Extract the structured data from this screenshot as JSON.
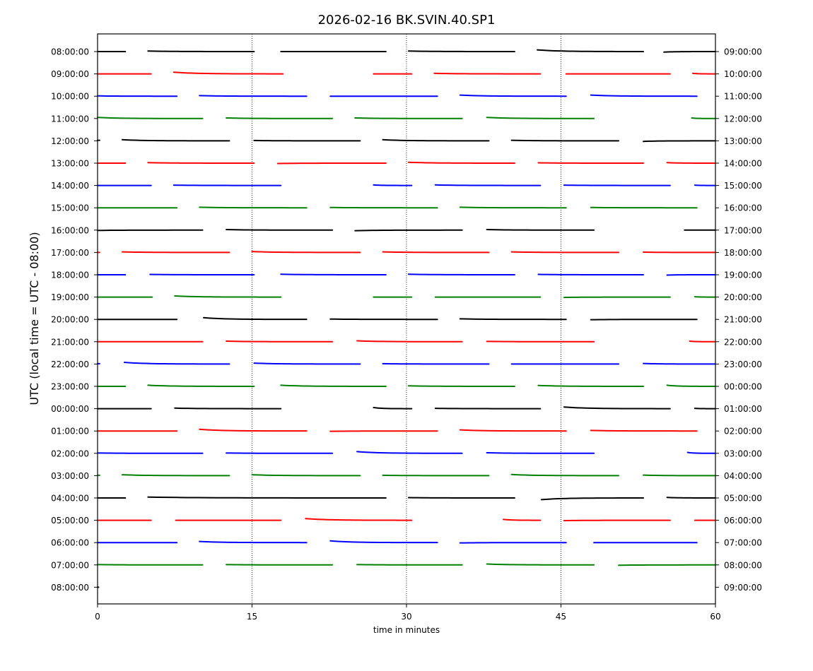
{
  "chart_data": {
    "type": "line",
    "chart_kind": "dayplot",
    "title": "2026-02-16 BK.SVIN.40.SP1",
    "xlabel": "time in minutes",
    "ylabel": "UTC (local time = UTC - 08:00)",
    "xlim": [
      0,
      60
    ],
    "xticks": [
      0,
      15,
      30,
      45,
      60
    ],
    "grid": "vertical dotted at 15, 30, 45",
    "line_colors": [
      "#000000",
      "#ff0000",
      "#0000ff",
      "#008000"
    ],
    "rows": [
      {
        "left": "08:00:00",
        "right": "09:00:00",
        "segments": [
          [
            0,
            2.7,
            0,
            0
          ],
          [
            4.9,
            15.2,
            0.5,
            0
          ],
          [
            17.8,
            28,
            0,
            0
          ],
          [
            30.2,
            40.5,
            0.5,
            0
          ],
          [
            42.7,
            53,
            1.5,
            0
          ],
          [
            55,
            60,
            -0.5,
            0
          ]
        ]
      },
      {
        "left": "09:00:00",
        "right": "10:00:00",
        "segments": [
          [
            0,
            5.2,
            0,
            0
          ],
          [
            7.4,
            18,
            1.5,
            0
          ],
          [
            26.8,
            30.5,
            0,
            0
          ],
          [
            32.7,
            43,
            0.5,
            0
          ],
          [
            45.5,
            55.6,
            0,
            0
          ],
          [
            57.8,
            60,
            0.5,
            0
          ]
        ]
      },
      {
        "left": "10:00:00",
        "right": "11:00:00",
        "segments": [
          [
            0,
            7.7,
            0.3,
            0
          ],
          [
            9.9,
            20.3,
            0.5,
            0
          ],
          [
            22.6,
            33,
            0,
            0
          ],
          [
            35.2,
            45.5,
            1,
            0
          ],
          [
            47.9,
            58.2,
            1,
            0
          ]
        ]
      },
      {
        "left": "11:00:00",
        "right": "12:00:00",
        "segments": [
          [
            0,
            10.2,
            1,
            0
          ],
          [
            12.5,
            22.8,
            0.5,
            0
          ],
          [
            25,
            35.4,
            0.5,
            0
          ],
          [
            37.8,
            48.2,
            1,
            0
          ],
          [
            57.7,
            60,
            0.5,
            0
          ]
        ]
      },
      {
        "left": "12:00:00",
        "right": "13:00:00",
        "segments": [
          [
            0,
            0.2,
            0.5,
            0.5
          ],
          [
            2.4,
            12.8,
            1,
            0
          ],
          [
            15.2,
            25.5,
            0.3,
            0
          ],
          [
            27.7,
            38,
            1,
            0
          ],
          [
            40.2,
            50.6,
            0.5,
            0
          ],
          [
            53,
            60,
            -0.5,
            0
          ]
        ]
      },
      {
        "left": "13:00:00",
        "right": "14:00:00",
        "segments": [
          [
            0,
            2.7,
            0,
            0
          ],
          [
            4.9,
            15.2,
            0.5,
            0
          ],
          [
            17.5,
            28,
            -0.3,
            0
          ],
          [
            30.2,
            40.5,
            0.8,
            0
          ],
          [
            42.8,
            53,
            0.3,
            0
          ],
          [
            55.3,
            60,
            0.5,
            0
          ]
        ]
      },
      {
        "left": "14:00:00",
        "right": "15:00:00",
        "segments": [
          [
            0,
            5.2,
            0,
            0
          ],
          [
            7.4,
            17.8,
            0.3,
            0
          ],
          [
            26.8,
            30.5,
            0.5,
            0
          ],
          [
            32.8,
            43,
            0.5,
            0
          ],
          [
            45.3,
            55.6,
            0.3,
            0
          ],
          [
            58,
            60,
            0.3,
            0
          ]
        ]
      },
      {
        "left": "15:00:00",
        "right": "16:00:00",
        "segments": [
          [
            0,
            7.7,
            0,
            0
          ],
          [
            9.9,
            20.3,
            0.5,
            0
          ],
          [
            22.6,
            33,
            0.3,
            0
          ],
          [
            35.2,
            45.5,
            0.5,
            0
          ],
          [
            47.9,
            58.2,
            0.3,
            0
          ]
        ]
      },
      {
        "left": "16:00:00",
        "right": "17:00:00",
        "segments": [
          [
            0,
            10.2,
            -0.3,
            0
          ],
          [
            12.5,
            22.8,
            0.5,
            0
          ],
          [
            25,
            35.4,
            -0.5,
            0
          ],
          [
            37.8,
            48.2,
            0.5,
            0
          ],
          [
            57,
            60,
            0,
            0
          ]
        ]
      },
      {
        "left": "17:00:00",
        "right": "18:00:00",
        "segments": [
          [
            0,
            0.2,
            0,
            0
          ],
          [
            2.4,
            12.8,
            0.5,
            0
          ],
          [
            15,
            25.5,
            0.8,
            0
          ],
          [
            27.7,
            38,
            0.5,
            0
          ],
          [
            40.2,
            50.6,
            0.5,
            0
          ],
          [
            53,
            60,
            0.3,
            0
          ]
        ]
      },
      {
        "left": "18:00:00",
        "right": "19:00:00",
        "segments": [
          [
            0,
            2.7,
            0,
            0
          ],
          [
            5.1,
            15.2,
            0.3,
            0
          ],
          [
            17.8,
            28,
            0.5,
            0
          ],
          [
            30.2,
            40.5,
            0.5,
            0
          ],
          [
            42.8,
            53,
            0.3,
            0
          ],
          [
            55.3,
            60,
            -0.3,
            0
          ]
        ]
      },
      {
        "left": "19:00:00",
        "right": "20:00:00",
        "segments": [
          [
            0,
            5.3,
            0,
            0
          ],
          [
            7.5,
            17.8,
            1,
            0
          ],
          [
            26.8,
            30.5,
            0,
            0
          ],
          [
            32.8,
            43,
            0,
            0
          ],
          [
            45.3,
            55.6,
            -0.3,
            0
          ],
          [
            58,
            60,
            0.3,
            0
          ]
        ]
      },
      {
        "left": "20:00:00",
        "right": "21:00:00",
        "segments": [
          [
            0,
            7.7,
            0,
            0
          ],
          [
            10.3,
            20.3,
            1.5,
            0
          ],
          [
            22.6,
            33,
            0.3,
            0
          ],
          [
            35.2,
            45.5,
            0.5,
            0
          ],
          [
            47.9,
            58.2,
            -0.3,
            0
          ]
        ]
      },
      {
        "left": "21:00:00",
        "right": "22:00:00",
        "segments": [
          [
            0,
            10.2,
            0,
            0
          ],
          [
            12.5,
            22.8,
            0.5,
            0
          ],
          [
            25.2,
            35.4,
            0.8,
            0
          ],
          [
            37.8,
            48.2,
            0.3,
            0
          ],
          [
            57.5,
            60,
            0.5,
            0
          ]
        ]
      },
      {
        "left": "22:00:00",
        "right": "23:00:00",
        "segments": [
          [
            0,
            0.2,
            0.3,
            0.3
          ],
          [
            2.6,
            12.8,
            1.5,
            0
          ],
          [
            15.2,
            25.5,
            0.8,
            0
          ],
          [
            27.7,
            38,
            0.3,
            0
          ],
          [
            40.2,
            50.6,
            0,
            0
          ],
          [
            53,
            60,
            0.5,
            0
          ]
        ]
      },
      {
        "left": "23:00:00",
        "right": "00:00:00",
        "segments": [
          [
            0,
            2.7,
            0,
            0
          ],
          [
            4.9,
            15.2,
            1,
            0
          ],
          [
            17.8,
            28,
            1,
            0
          ],
          [
            30.2,
            40.5,
            0.5,
            0
          ],
          [
            42.8,
            53,
            0.8,
            0
          ],
          [
            55.3,
            60,
            1,
            0
          ]
        ]
      },
      {
        "left": "00:00:00",
        "right": "01:00:00",
        "segments": [
          [
            0,
            5.2,
            0,
            0
          ],
          [
            7.5,
            17.8,
            0.5,
            0
          ],
          [
            26.8,
            30.5,
            1,
            0
          ],
          [
            32.8,
            43,
            0.3,
            0
          ],
          [
            45.3,
            55.6,
            1.5,
            0
          ],
          [
            58,
            60,
            0.3,
            0
          ]
        ]
      },
      {
        "left": "01:00:00",
        "right": "02:00:00",
        "segments": [
          [
            0,
            7.7,
            0,
            0
          ],
          [
            9.9,
            20.3,
            1.5,
            0
          ],
          [
            22.6,
            33,
            -0.3,
            0
          ],
          [
            35.2,
            45.5,
            1,
            0
          ],
          [
            47.9,
            58.2,
            0.5,
            0
          ]
        ]
      },
      {
        "left": "02:00:00",
        "right": "03:00:00",
        "segments": [
          [
            0,
            10.2,
            0.3,
            0
          ],
          [
            12.5,
            22.8,
            0.3,
            0
          ],
          [
            25.2,
            35.4,
            1.5,
            0
          ],
          [
            37.8,
            48.2,
            0.5,
            0
          ],
          [
            57.3,
            60,
            0.8,
            0
          ]
        ]
      },
      {
        "left": "03:00:00",
        "right": "04:00:00",
        "segments": [
          [
            0,
            0.2,
            0.3,
            0.3
          ],
          [
            2.4,
            12.8,
            0.8,
            0
          ],
          [
            15,
            25.5,
            0.8,
            0
          ],
          [
            27.7,
            38,
            0.3,
            0
          ],
          [
            40.2,
            50.6,
            1,
            0
          ],
          [
            53,
            60,
            0.5,
            0
          ]
        ]
      },
      {
        "left": "04:00:00",
        "right": "05:00:00",
        "segments": [
          [
            0,
            2.7,
            0,
            0
          ],
          [
            4.9,
            28,
            0.8,
            0
          ],
          [
            30.2,
            40.5,
            0.3,
            0
          ],
          [
            43.1,
            53,
            -1.5,
            0
          ],
          [
            55.3,
            60,
            0.5,
            0
          ]
        ]
      },
      {
        "left": "05:00:00",
        "right": "06:00:00",
        "segments": [
          [
            0,
            5.2,
            0,
            0
          ],
          [
            7.6,
            17.8,
            0,
            0
          ],
          [
            20.2,
            30.5,
            1.5,
            0
          ],
          [
            39.4,
            43,
            0.8,
            0
          ],
          [
            45.3,
            55.6,
            -0.3,
            0
          ],
          [
            58,
            60,
            0,
            0
          ]
        ]
      },
      {
        "left": "06:00:00",
        "right": "07:00:00",
        "segments": [
          [
            0,
            7.7,
            0,
            0
          ],
          [
            9.9,
            20.3,
            1,
            0
          ],
          [
            22.6,
            33,
            1.5,
            0
          ],
          [
            35.2,
            45.5,
            -0.3,
            0
          ],
          [
            48.2,
            58.2,
            0,
            0
          ]
        ]
      },
      {
        "left": "07:00:00",
        "right": "08:00:00",
        "segments": [
          [
            0,
            10.2,
            0.3,
            0
          ],
          [
            12.5,
            22.8,
            0.3,
            0
          ],
          [
            25.2,
            35.4,
            0.3,
            0
          ],
          [
            37.8,
            48.2,
            0.8,
            0
          ],
          [
            50.6,
            60,
            -0.3,
            0
          ]
        ]
      },
      {
        "left": "08:00:00",
        "right": "09:00:00",
        "segments": [
          [
            0,
            0.1,
            0,
            0
          ]
        ]
      }
    ]
  }
}
